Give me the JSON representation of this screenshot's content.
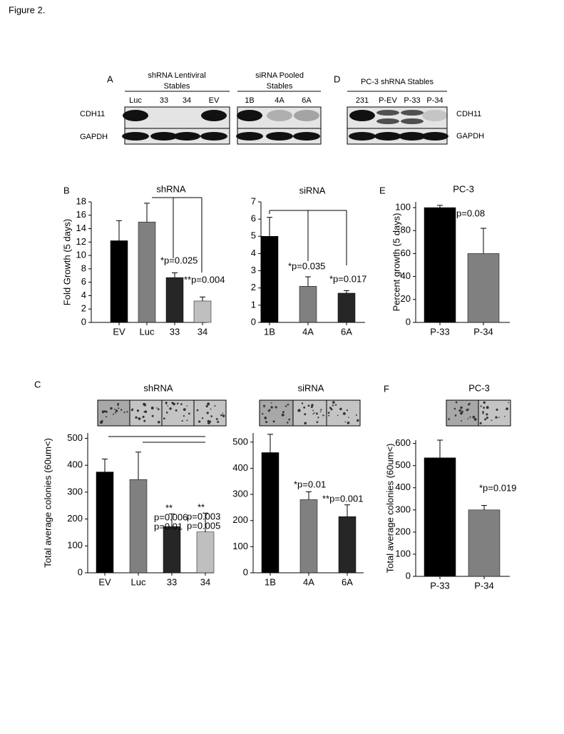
{
  "figure_title": "Figure 2.",
  "blots": [
    {
      "panel": "A",
      "groups": [
        {
          "title": [
            "shRNA Lentiviral",
            "Stables"
          ],
          "lanes": [
            "Luc",
            "33",
            "34",
            "EV"
          ]
        },
        {
          "title": [
            "siRNA Pooled",
            "Stables"
          ],
          "lanes": [
            "1B",
            "4A",
            "6A"
          ]
        }
      ],
      "rows": [
        "CDH11",
        "GAPDH"
      ]
    },
    {
      "panel": "D",
      "groups": [
        {
          "title": [
            "PC-3 shRNA Stables"
          ],
          "lanes": [
            "231",
            "P-EV",
            "P-33",
            "P-34"
          ]
        }
      ],
      "rows": [
        "CDH11",
        "GAPDH"
      ]
    }
  ],
  "chart_data": [
    {
      "type": "bar",
      "panel": "B",
      "title": "shRNA",
      "ylabel": "Fold Growth (5 days)",
      "categories": [
        "EV",
        "Luc",
        "33",
        "34"
      ],
      "values": [
        12.2,
        15,
        6.7,
        3.2
      ],
      "errors": [
        3,
        2.8,
        0.7,
        0.6
      ],
      "colors": [
        "#000000",
        "#808080",
        "#262626",
        "#bfbfbf"
      ],
      "ylim": [
        0,
        18
      ],
      "yticks": [
        0,
        2,
        4,
        6,
        8,
        10,
        12,
        14,
        16,
        18
      ],
      "annotations": [
        {
          "text": "*p=0.025",
          "color": "#000000"
        },
        {
          "text": "**p=0.004",
          "color": "#000000"
        }
      ]
    },
    {
      "type": "bar",
      "title": "siRNA",
      "categories": [
        "1B",
        "4A",
        "6A"
      ],
      "values": [
        5,
        2.1,
        1.7
      ],
      "errors": [
        1.1,
        0.55,
        0.15
      ],
      "colors": [
        "#000000",
        "#808080",
        "#262626"
      ],
      "ylim": [
        0,
        7
      ],
      "yticks": [
        0,
        1,
        2,
        3,
        4,
        5,
        6,
        7
      ],
      "annotations": [
        {
          "text": "*p=0.035",
          "color": "#000000"
        },
        {
          "text": "*p=0.017",
          "color": "#000000"
        }
      ]
    },
    {
      "type": "bar",
      "panel": "E",
      "title": "PC-3",
      "ylabel": "Percent growth (5 days)",
      "categories": [
        "P-33",
        "P-34"
      ],
      "values": [
        100,
        60
      ],
      "errors": [
        2,
        22
      ],
      "colors": [
        "#000000",
        "#808080"
      ],
      "ylim": [
        0,
        105
      ],
      "yticks": [
        0,
        20,
        40,
        60,
        80,
        100
      ],
      "annotations": [
        {
          "text": "p=0.08",
          "color": "#000000"
        }
      ]
    },
    {
      "type": "bar",
      "panel": "C",
      "title": "shRNA",
      "ylabel": "Total average colonies (60um<)",
      "categories": [
        "EV",
        "Luc",
        "33",
        "34"
      ],
      "values": [
        375,
        347,
        172,
        152
      ],
      "errors": [
        48,
        102,
        47,
        70
      ],
      "colors": [
        "#000000",
        "#808080",
        "#262626",
        "#bfbfbf"
      ],
      "ylim": [
        0,
        520
      ],
      "yticks": [
        0,
        100,
        200,
        300,
        400,
        500
      ],
      "annotations": [
        {
          "text": "**",
          "color": "#000000"
        },
        {
          "text": "p=0.006",
          "color": "#000000"
        },
        {
          "text": "p=0.01",
          "color": "#808080"
        },
        {
          "text": "**",
          "color": "#000000"
        },
        {
          "text": "p=0.003",
          "color": "#000000"
        },
        {
          "text": "p=0.005",
          "color": "#808080"
        }
      ]
    },
    {
      "type": "bar",
      "title": "siRNA",
      "categories": [
        "1B",
        "4A",
        "6A"
      ],
      "values": [
        460,
        280,
        215
      ],
      "errors": [
        70,
        30,
        45
      ],
      "colors": [
        "#000000",
        "#808080",
        "#262626"
      ],
      "ylim": [
        0,
        535
      ],
      "yticks": [
        0,
        100,
        200,
        300,
        400,
        500
      ],
      "annotations": [
        {
          "text": "*p=0.01",
          "color": "#000000"
        },
        {
          "text": "**p=0.001",
          "color": "#000000"
        }
      ]
    },
    {
      "type": "bar",
      "panel": "F",
      "title": "PC-3",
      "ylabel": "Total average colonies (60um<)",
      "categories": [
        "P-33",
        "P-34"
      ],
      "values": [
        535,
        300
      ],
      "errors": [
        80,
        20
      ],
      "colors": [
        "#000000",
        "#808080"
      ],
      "ylim": [
        0,
        615
      ],
      "yticks": [
        0,
        100,
        200,
        300,
        400,
        500,
        600
      ],
      "annotations": [
        {
          "text": "*p=0.019",
          "color": "#000000"
        }
      ]
    }
  ]
}
